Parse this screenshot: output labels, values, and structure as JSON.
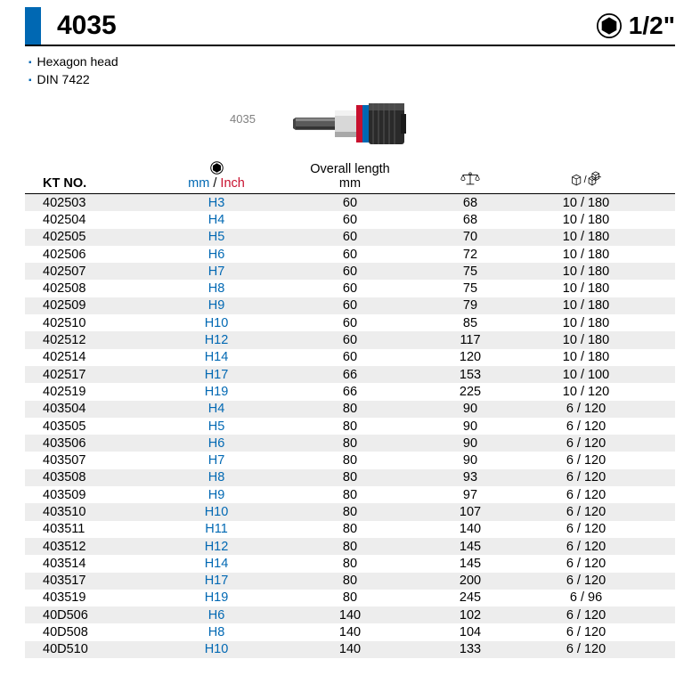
{
  "header": {
    "product_number": "4035",
    "drive_size": "1/2\"",
    "accent_color": "#0068b3"
  },
  "notes": {
    "bullets": [
      "Hexagon head",
      "DIN 7422"
    ]
  },
  "productImage": {
    "caption": "4035"
  },
  "table": {
    "headers": {
      "ktno": "KT NO.",
      "mm": "mm",
      "slash": " / ",
      "inch": "Inch",
      "overall_l1": "Overall length",
      "overall_l2": "mm"
    },
    "columns": [
      "ktno",
      "size",
      "length",
      "weight",
      "pack"
    ],
    "rows": [
      {
        "ktno": "402503",
        "size": "H3",
        "length": "60",
        "weight": "68",
        "pack": "10 / 180"
      },
      {
        "ktno": "402504",
        "size": "H4",
        "length": "60",
        "weight": "68",
        "pack": "10 / 180"
      },
      {
        "ktno": "402505",
        "size": "H5",
        "length": "60",
        "weight": "70",
        "pack": "10 / 180"
      },
      {
        "ktno": "402506",
        "size": "H6",
        "length": "60",
        "weight": "72",
        "pack": "10 / 180"
      },
      {
        "ktno": "402507",
        "size": "H7",
        "length": "60",
        "weight": "75",
        "pack": "10 / 180"
      },
      {
        "ktno": "402508",
        "size": "H8",
        "length": "60",
        "weight": "75",
        "pack": "10 / 180"
      },
      {
        "ktno": "402509",
        "size": "H9",
        "length": "60",
        "weight": "79",
        "pack": "10 / 180"
      },
      {
        "ktno": "402510",
        "size": "H10",
        "length": "60",
        "weight": "85",
        "pack": "10 / 180"
      },
      {
        "ktno": "402512",
        "size": "H12",
        "length": "60",
        "weight": "117",
        "pack": "10 / 180"
      },
      {
        "ktno": "402514",
        "size": "H14",
        "length": "60",
        "weight": "120",
        "pack": "10 / 180"
      },
      {
        "ktno": "402517",
        "size": "H17",
        "length": "66",
        "weight": "153",
        "pack": "10 / 100"
      },
      {
        "ktno": "402519",
        "size": "H19",
        "length": "66",
        "weight": "225",
        "pack": "10 / 120"
      },
      {
        "ktno": "403504",
        "size": "H4",
        "length": "80",
        "weight": "90",
        "pack": "6 / 120"
      },
      {
        "ktno": "403505",
        "size": "H5",
        "length": "80",
        "weight": "90",
        "pack": "6 / 120"
      },
      {
        "ktno": "403506",
        "size": "H6",
        "length": "80",
        "weight": "90",
        "pack": "6 / 120"
      },
      {
        "ktno": "403507",
        "size": "H7",
        "length": "80",
        "weight": "90",
        "pack": "6 / 120"
      },
      {
        "ktno": "403508",
        "size": "H8",
        "length": "80",
        "weight": "93",
        "pack": "6 / 120"
      },
      {
        "ktno": "403509",
        "size": "H9",
        "length": "80",
        "weight": "97",
        "pack": "6 / 120"
      },
      {
        "ktno": "403510",
        "size": "H10",
        "length": "80",
        "weight": "107",
        "pack": "6 / 120"
      },
      {
        "ktno": "403511",
        "size": "H11",
        "length": "80",
        "weight": "140",
        "pack": "6 / 120"
      },
      {
        "ktno": "403512",
        "size": "H12",
        "length": "80",
        "weight": "145",
        "pack": "6 / 120"
      },
      {
        "ktno": "403514",
        "size": "H14",
        "length": "80",
        "weight": "145",
        "pack": "6 / 120"
      },
      {
        "ktno": "403517",
        "size": "H17",
        "length": "80",
        "weight": "200",
        "pack": "6 / 120"
      },
      {
        "ktno": "403519",
        "size": "H19",
        "length": "80",
        "weight": "245",
        "pack": "6 / 96"
      },
      {
        "ktno": "40D506",
        "size": "H6",
        "length": "140",
        "weight": "102",
        "pack": "6 / 120"
      },
      {
        "ktno": "40D508",
        "size": "H8",
        "length": "140",
        "weight": "104",
        "pack": "6 / 120"
      },
      {
        "ktno": "40D510",
        "size": "H10",
        "length": "140",
        "weight": "133",
        "pack": "6 / 120"
      }
    ],
    "shade_color": "#ededed"
  }
}
